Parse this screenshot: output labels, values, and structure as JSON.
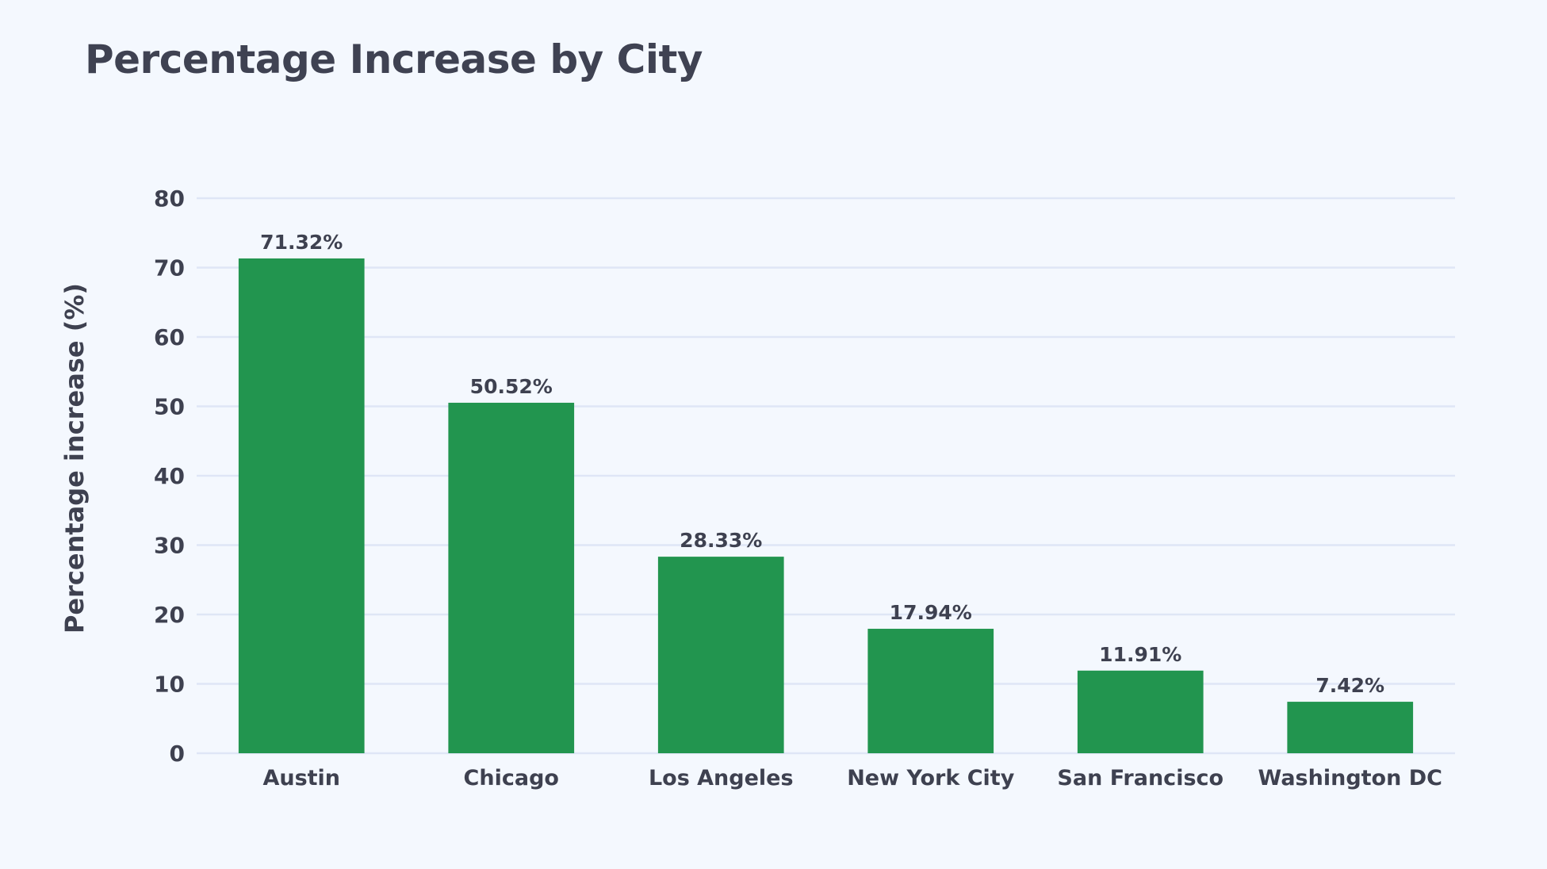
{
  "chart_data": {
    "type": "bar",
    "title": "Percentage Increase by City",
    "xlabel": "",
    "ylabel": "Percentage increase (%)",
    "categories": [
      "Austin",
      "Chicago",
      "Los Angeles",
      "New York City",
      "San Francisco",
      "Washington DC"
    ],
    "values": [
      71.32,
      50.52,
      28.33,
      17.94,
      11.91,
      7.42
    ],
    "data_labels": [
      "71.32%",
      "50.52%",
      "28.33%",
      "17.94%",
      "11.91%",
      "7.42%"
    ],
    "yticks": [
      0,
      10,
      20,
      30,
      40,
      50,
      60,
      70,
      80
    ],
    "ylim": [
      0,
      80
    ],
    "grid": true,
    "legend": "none",
    "bar_color": "#22954f",
    "grid_color": "#dfe6f6",
    "background": "#f4f8fe"
  }
}
